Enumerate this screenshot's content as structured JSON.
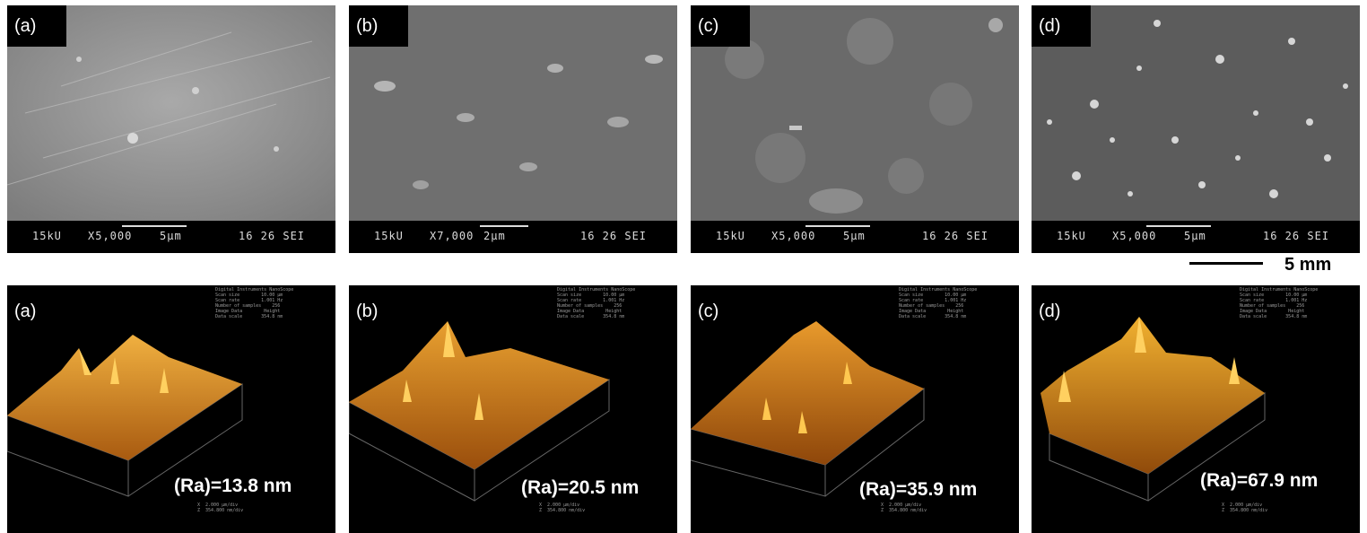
{
  "sem_panels": [
    {
      "label": "(a)",
      "kv": "15kU",
      "mag": "X5,000",
      "scale": "5µm",
      "id": "16 26 SEI"
    },
    {
      "label": "(b)",
      "kv": "15kU",
      "mag": "X7,000",
      "scale": "2µm",
      "id": "16 26 SEI"
    },
    {
      "label": "(c)",
      "kv": "15kU",
      "mag": "X5,000",
      "scale": "5µm",
      "id": "16 26 SEI"
    },
    {
      "label": "(d)",
      "kv": "15kU",
      "mag": "X5,000",
      "scale": "5µm",
      "id": "16 26 SEI"
    }
  ],
  "afm_panels": [
    {
      "label": "(a)",
      "ra": "(Ra)=13.8 nm"
    },
    {
      "label": "(b)",
      "ra": "(Ra)=20.5 nm"
    },
    {
      "label": "(c)",
      "ra": "(Ra)=35.9 nm"
    },
    {
      "label": "(d)",
      "ra": "(Ra)=67.9 nm"
    }
  ],
  "afm_meta": "Digital Instruments NanoScope\nScan size        10.00 µm\nScan rate        1.001 Hz\nNumber of samples    256\nImage Data        Height\nData scale       354.8 nm",
  "afm_footer": "X  2.000 µm/div\nZ  354.800 nm/div",
  "scale_bar": {
    "label": "5 mm"
  },
  "colors": {
    "afm_surface": "#d9811c",
    "sem_gray": "#8c8c8c",
    "background": "#000000"
  }
}
